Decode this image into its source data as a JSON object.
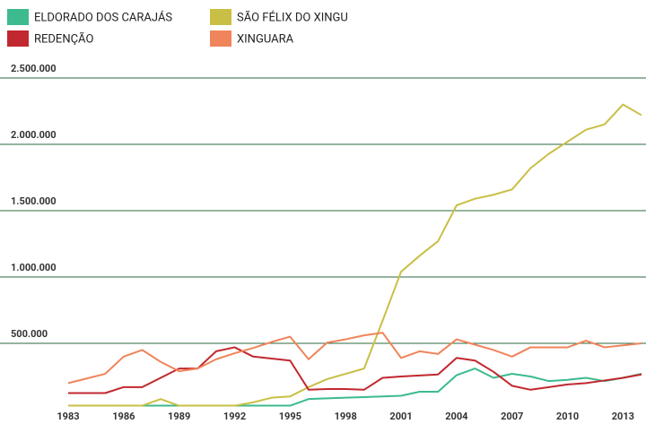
{
  "chart_data": {
    "type": "line",
    "x": [
      1983,
      1984,
      1985,
      1986,
      1987,
      1988,
      1989,
      1990,
      1991,
      1992,
      1993,
      1994,
      1995,
      1996,
      1997,
      1998,
      1999,
      2000,
      2001,
      2002,
      2003,
      2004,
      2005,
      2006,
      2007,
      2008,
      2009,
      2010,
      2011,
      2012,
      2013,
      2014
    ],
    "series": [
      {
        "name": "ELDORADO DOS CARAJÁS",
        "color": "#3dba8e",
        "values": [
          30000,
          30000,
          30000,
          30000,
          30000,
          30000,
          30000,
          30000,
          30000,
          30000,
          30000,
          30000,
          30000,
          80000,
          85000,
          90000,
          95000,
          100000,
          105000,
          135000,
          135000,
          260000,
          310000,
          240000,
          270000,
          250000,
          215000,
          225000,
          240000,
          215000,
          240000,
          270000
        ]
      },
      {
        "name": "SÃO FÉLIX DO XINGU",
        "color": "#c9bf45",
        "values": [
          30000,
          30000,
          30000,
          30000,
          30000,
          80000,
          30000,
          30000,
          30000,
          30000,
          55000,
          90000,
          100000,
          170000,
          230000,
          270000,
          310000,
          670000,
          1040000,
          1160000,
          1270000,
          1540000,
          1590000,
          1620000,
          1660000,
          1820000,
          1930000,
          2020000,
          2110000,
          2150000,
          2300000,
          2220000
        ]
      },
      {
        "name": "REDENÇÃO",
        "color": "#c1282f",
        "values": [
          125000,
          125000,
          125000,
          170000,
          170000,
          240000,
          310000,
          310000,
          440000,
          470000,
          400000,
          385000,
          370000,
          150000,
          155000,
          155000,
          150000,
          240000,
          250000,
          258000,
          265000,
          390000,
          370000,
          285000,
          180000,
          150000,
          170000,
          190000,
          200000,
          220000,
          240000,
          265000
        ]
      },
      {
        "name": "XINGUARA",
        "color": "#f0845a",
        "values": [
          200000,
          235000,
          270000,
          400000,
          450000,
          360000,
          290000,
          310000,
          380000,
          425000,
          465000,
          510000,
          550000,
          380000,
          505000,
          530000,
          560000,
          580000,
          390000,
          440000,
          420000,
          530000,
          490000,
          450000,
          400000,
          470000,
          470000,
          470000,
          520000,
          470000,
          485000,
          500000
        ]
      }
    ],
    "xlim": [
      1983,
      2014
    ],
    "xticks": [
      1983,
      1986,
      1989,
      1992,
      1995,
      1998,
      2001,
      2004,
      2007,
      2010,
      2013
    ],
    "ylim": [
      0,
      2500000
    ],
    "yticks": [
      {
        "value": 500000,
        "label": "500.000"
      },
      {
        "value": 1000000,
        "label": "1.000.000"
      },
      {
        "value": 1500000,
        "label": "1.500.000"
      },
      {
        "value": 2000000,
        "label": "2.000.000"
      },
      {
        "value": 2500000,
        "label": "2.500.000"
      }
    ],
    "grid": true
  }
}
